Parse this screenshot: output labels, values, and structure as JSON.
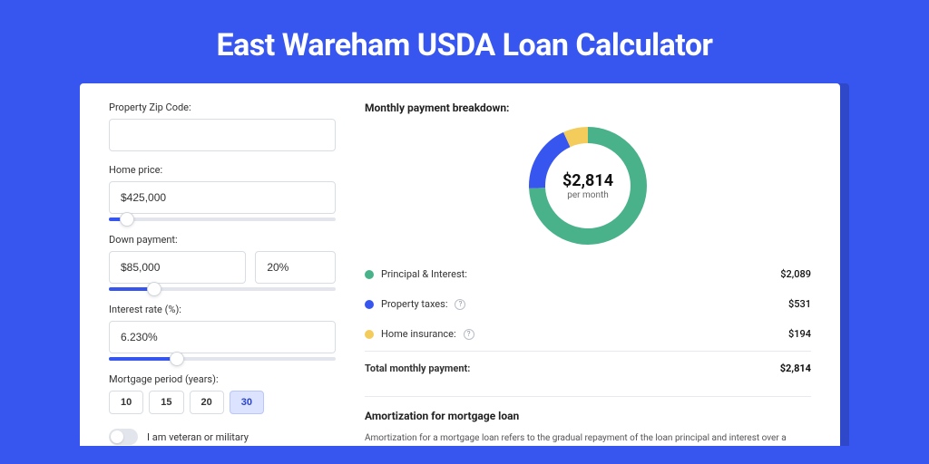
{
  "page": {
    "title": "East Wareham USDA Loan Calculator",
    "bg_color": "#3755ef",
    "shade_color": "#2f48c9"
  },
  "form": {
    "zip": {
      "label": "Property Zip Code:",
      "value": ""
    },
    "home_price": {
      "label": "Home price:",
      "value": "$425,000",
      "slider_pct": 8
    },
    "down_payment": {
      "label": "Down payment:",
      "amount": "$85,000",
      "percent": "20%",
      "slider_pct": 20
    },
    "interest_rate": {
      "label": "Interest rate (%):",
      "value": "6.230%",
      "slider_pct": 30
    },
    "period": {
      "label": "Mortgage period (years):",
      "options": [
        "10",
        "15",
        "20",
        "30"
      ],
      "selected": "30"
    },
    "veteran": {
      "label": "I am veteran or military",
      "checked": false
    }
  },
  "breakdown": {
    "title": "Monthly payment breakdown:",
    "center_amount": "$2,814",
    "center_sub": "per month",
    "donut": {
      "stroke_width": 18,
      "radius": 56,
      "slices": [
        {
          "key": "principal_interest",
          "label": "Principal & Interest:",
          "value": "$2,089",
          "color": "#49b28a",
          "fraction": 0.742,
          "info": false
        },
        {
          "key": "property_taxes",
          "label": "Property taxes:",
          "value": "$531",
          "color": "#3755ef",
          "fraction": 0.189,
          "info": true
        },
        {
          "key": "home_insurance",
          "label": "Home insurance:",
          "value": "$194",
          "color": "#f3cc5c",
          "fraction": 0.069,
          "info": true
        }
      ]
    },
    "total": {
      "label": "Total monthly payment:",
      "value": "$2,814"
    }
  },
  "amortization": {
    "title": "Amortization for mortgage loan",
    "text": "Amortization for a mortgage loan refers to the gradual repayment of the loan principal and interest over a specified"
  }
}
